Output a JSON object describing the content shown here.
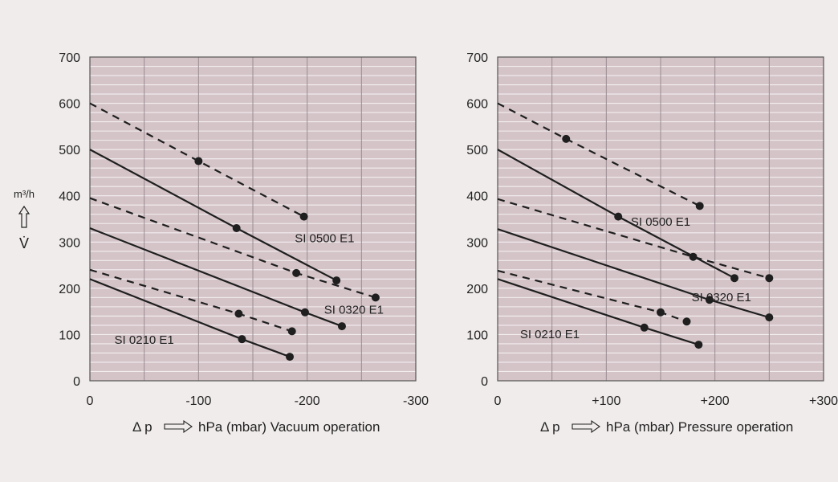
{
  "colors": {
    "background": "#f1ecec",
    "plot_fill": "#d4c4c8",
    "minor_grid": "#f4eef0",
    "major_grid": "#9a8c91",
    "line": "#1f1f1f"
  },
  "y_axis": {
    "unit": "m³/h",
    "symbol": "V̇",
    "arrow": "up-arrow-icon"
  },
  "chart_data": [
    {
      "type": "line",
      "title": "",
      "xlabel_prefix": "Δ p",
      "xlabel_text": "hPa (mbar) Vacuum operation",
      "xlim": [
        0,
        -300
      ],
      "ylim": [
        0,
        700
      ],
      "x_ticks": [
        {
          "value": 0,
          "label": "0"
        },
        {
          "value": -100,
          "label": "-100"
        },
        {
          "value": -200,
          "label": "-200"
        },
        {
          "value": -300,
          "label": "-300"
        }
      ],
      "y_ticks": [
        {
          "value": 0,
          "label": "0"
        },
        {
          "value": 100,
          "label": "100"
        },
        {
          "value": 200,
          "label": "200"
        },
        {
          "value": 300,
          "label": "300"
        },
        {
          "value": 400,
          "label": "400"
        },
        {
          "value": 500,
          "label": "500"
        },
        {
          "value": 600,
          "label": "600"
        },
        {
          "value": 700,
          "label": "700"
        }
      ],
      "grid": true,
      "minor_y_step": 20,
      "major_x_step": 50,
      "series": [
        {
          "style": "dashed",
          "points": [
            [
              0,
              600
            ],
            [
              -100,
              475
            ],
            [
              -197,
              355
            ]
          ],
          "markers": [
            [
              -100,
              475
            ],
            [
              -197,
              355
            ]
          ]
        },
        {
          "style": "solid",
          "points": [
            [
              0,
              500
            ],
            [
              -135,
              330
            ],
            [
              -227,
              217
            ]
          ],
          "markers": [
            [
              -135,
              330
            ],
            [
              -227,
              217
            ]
          ]
        },
        {
          "style": "dashed",
          "points": [
            [
              0,
              395
            ],
            [
              -190,
              233
            ],
            [
              -263,
              180
            ]
          ],
          "markers": [
            [
              -190,
              233
            ],
            [
              -263,
              180
            ]
          ]
        },
        {
          "style": "solid",
          "points": [
            [
              0,
              330
            ],
            [
              -198,
              148
            ],
            [
              -232,
              118
            ]
          ],
          "markers": [
            [
              -198,
              148
            ],
            [
              -232,
              118
            ]
          ]
        },
        {
          "style": "dashed",
          "points": [
            [
              0,
              240
            ],
            [
              -137,
              145
            ],
            [
              -186,
              107
            ]
          ],
          "markers": [
            [
              -137,
              145
            ],
            [
              -186,
              107
            ]
          ]
        },
        {
          "style": "solid",
          "points": [
            [
              0,
              220
            ],
            [
              -140,
              90
            ],
            [
              -184,
              52
            ]
          ],
          "markers": [
            [
              -140,
              90
            ],
            [
              -184,
              52
            ]
          ]
        }
      ],
      "annotations": [
        {
          "text": "SI 0500 E1",
          "x": -216,
          "y": 300
        },
        {
          "text": "SI 0320 E1",
          "x": -243,
          "y": 145
        },
        {
          "text": "SI 0210 E1",
          "x": -50,
          "y": 80
        }
      ]
    },
    {
      "type": "line",
      "title": "",
      "xlabel_prefix": "Δ p",
      "xlabel_text": "hPa (mbar) Pressure operation",
      "xlim": [
        0,
        300
      ],
      "ylim": [
        0,
        700
      ],
      "x_ticks": [
        {
          "value": 0,
          "label": "0"
        },
        {
          "value": 100,
          "label": "+100"
        },
        {
          "value": 200,
          "label": "+200"
        },
        {
          "value": 300,
          "label": "+300"
        }
      ],
      "y_ticks": [
        {
          "value": 0,
          "label": "0"
        },
        {
          "value": 100,
          "label": "100"
        },
        {
          "value": 200,
          "label": "200"
        },
        {
          "value": 300,
          "label": "300"
        },
        {
          "value": 400,
          "label": "400"
        },
        {
          "value": 500,
          "label": "500"
        },
        {
          "value": 600,
          "label": "600"
        },
        {
          "value": 700,
          "label": "700"
        }
      ],
      "grid": true,
      "minor_y_step": 20,
      "major_x_step": 50,
      "series": [
        {
          "style": "dashed",
          "points": [
            [
              0,
              600
            ],
            [
              63,
              523
            ],
            [
              186,
              378
            ]
          ],
          "markers": [
            [
              63,
              523
            ],
            [
              186,
              378
            ]
          ]
        },
        {
          "style": "solid",
          "points": [
            [
              0,
              500
            ],
            [
              111,
              355
            ],
            [
              218,
              222
            ]
          ],
          "markers": [
            [
              111,
              355
            ],
            [
              218,
              222
            ]
          ]
        },
        {
          "style": "dashed",
          "points": [
            [
              0,
              393
            ],
            [
              180,
              268
            ],
            [
              250,
              222
            ]
          ],
          "markers": [
            [
              180,
              268
            ],
            [
              250,
              222
            ]
          ]
        },
        {
          "style": "solid",
          "points": [
            [
              0,
              328
            ],
            [
              195,
              175
            ],
            [
              250,
              137
            ]
          ],
          "markers": [
            [
              195,
              175
            ],
            [
              250,
              137
            ]
          ]
        },
        {
          "style": "dashed",
          "points": [
            [
              0,
              238
            ],
            [
              150,
              148
            ],
            [
              174,
              128
            ]
          ],
          "markers": [
            [
              150,
              148
            ],
            [
              174,
              128
            ]
          ]
        },
        {
          "style": "solid",
          "points": [
            [
              0,
              220
            ],
            [
              135,
              115
            ],
            [
              185,
              78
            ]
          ],
          "markers": [
            [
              135,
              115
            ],
            [
              185,
              78
            ]
          ]
        }
      ],
      "annotations": [
        {
          "text": "SI 0500 E1",
          "x": 150,
          "y": 335
        },
        {
          "text": "SI 0320 E1",
          "x": 206,
          "y": 172
        },
        {
          "text": "SI 0210 E1",
          "x": 48,
          "y": 92
        }
      ]
    }
  ]
}
